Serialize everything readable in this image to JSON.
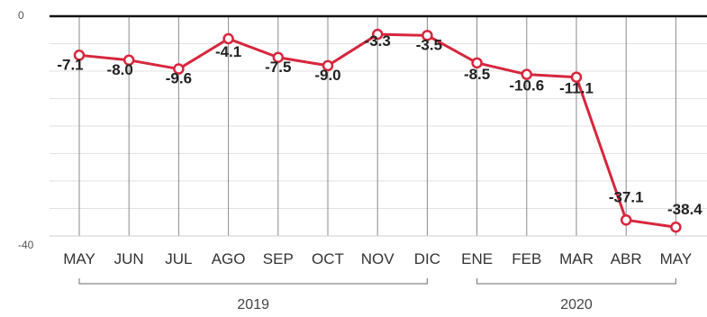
{
  "chart_data": {
    "type": "line",
    "categories": [
      "MAY",
      "JUN",
      "JUL",
      "AGO",
      "SEP",
      "OCT",
      "NOV",
      "DIC",
      "ENE",
      "FEB",
      "MAR",
      "ABR",
      "MAY"
    ],
    "values": [
      -7.1,
      -8.0,
      -9.6,
      -4.1,
      -7.5,
      -9.0,
      -3.3,
      -3.5,
      -8.5,
      -10.6,
      -11.1,
      -37.1,
      -38.4
    ],
    "value_labels": [
      "-7.1",
      "-8.0",
      "-9.6",
      "-4.1",
      "-7.5",
      "-9.0",
      "-3.3",
      "-3.5",
      "-8.5",
      "-10.6",
      "-11.1",
      "-37.1",
      "-38.4"
    ],
    "yticks": [
      {
        "value": 0,
        "label": "0"
      },
      {
        "value": -40,
        "label": "-40"
      }
    ],
    "ylim": [
      -40,
      0
    ],
    "groups": [
      {
        "label": "2019",
        "start": 0,
        "end": 7
      },
      {
        "label": "2020",
        "start": 8,
        "end": 12
      }
    ],
    "line_color": "#d7263d",
    "grid": true
  }
}
